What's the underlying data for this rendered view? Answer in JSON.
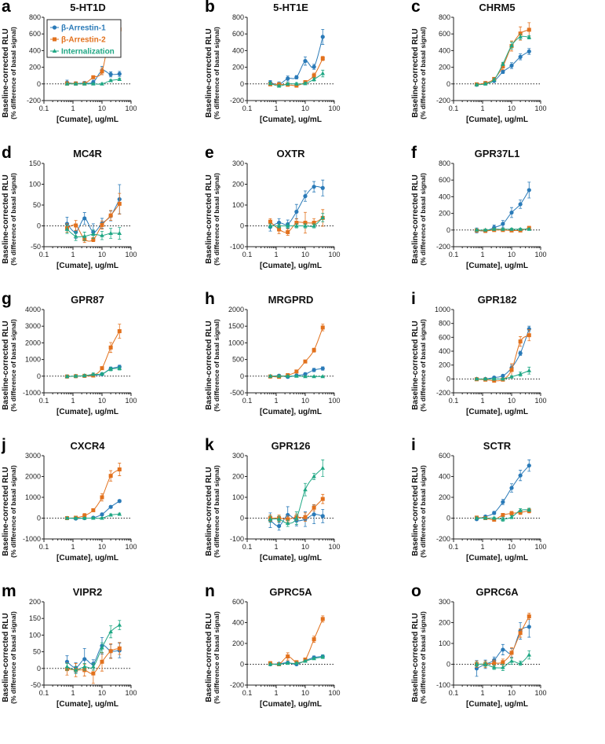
{
  "chart_data": [
    {
      "type": "scatter",
      "letter": "a",
      "title": "5-HT1D",
      "ylim": [
        -200,
        800
      ],
      "ystep": 200,
      "legend": true,
      "series": [
        {
          "values": [
            15,
            5,
            10,
            20,
            160,
            115,
            120
          ],
          "err": [
            30,
            20,
            20,
            25,
            50,
            30,
            30
          ]
        },
        {
          "values": [
            5,
            5,
            5,
            80,
            150,
            625,
            655
          ],
          "err": [
            20,
            15,
            15,
            15,
            40,
            80,
            30
          ]
        },
        {
          "values": [
            0,
            0,
            0,
            0,
            0,
            40,
            55
          ],
          "err": [
            10,
            10,
            10,
            10,
            10,
            10,
            15
          ]
        }
      ]
    },
    {
      "type": "scatter",
      "letter": "b",
      "title": "5-HT1E",
      "ylim": [
        -200,
        800
      ],
      "ystep": 200,
      "series": [
        {
          "values": [
            15,
            -5,
            65,
            80,
            275,
            205,
            565
          ],
          "err": [
            25,
            30,
            30,
            20,
            50,
            30,
            90
          ]
        },
        {
          "values": [
            -5,
            -5,
            -10,
            -20,
            20,
            100,
            305
          ],
          "err": [
            15,
            15,
            15,
            20,
            20,
            30,
            25
          ]
        },
        {
          "values": [
            5,
            -25,
            0,
            0,
            5,
            55,
            125
          ],
          "err": [
            15,
            15,
            15,
            15,
            15,
            20,
            40
          ]
        }
      ]
    },
    {
      "type": "scatter",
      "letter": "c",
      "title": "CHRM5",
      "ylim": [
        -200,
        800
      ],
      "ystep": 200,
      "series": [
        {
          "values": [
            -10,
            10,
            35,
            145,
            220,
            325,
            390
          ],
          "err": [
            10,
            10,
            10,
            20,
            35,
            35,
            35
          ]
        },
        {
          "values": [
            -5,
            10,
            60,
            210,
            455,
            605,
            650
          ],
          "err": [
            10,
            15,
            15,
            40,
            60,
            80,
            85
          ]
        },
        {
          "values": [
            -10,
            0,
            50,
            240,
            460,
            565,
            560
          ],
          "err": [
            10,
            15,
            15,
            20,
            40,
            30,
            20
          ]
        }
      ]
    },
    {
      "type": "scatter",
      "letter": "d",
      "title": "MC4R",
      "ylim": [
        -50,
        150
      ],
      "ystep": 50,
      "series": [
        {
          "values": [
            5,
            -15,
            18,
            -15,
            6,
            24,
            64
          ],
          "err": [
            16,
            15,
            14,
            20,
            12,
            12,
            35
          ]
        },
        {
          "values": [
            -5,
            1,
            -32,
            -33,
            2,
            25,
            53
          ],
          "err": [
            10,
            12,
            8,
            5,
            10,
            12,
            25
          ]
        },
        {
          "values": [
            -8,
            -25,
            -25,
            -20,
            -23,
            -18,
            -18
          ],
          "err": [
            10,
            10,
            10,
            10,
            10,
            12,
            14
          ]
        }
      ]
    },
    {
      "type": "scatter",
      "letter": "e",
      "title": "OXTR",
      "ylim": [
        -100,
        300
      ],
      "ystep": 100,
      "series": [
        {
          "values": [
            -5,
            15,
            8,
            68,
            143,
            188,
            182
          ],
          "err": [
            20,
            20,
            20,
            35,
            25,
            25,
            38
          ]
        },
        {
          "values": [
            20,
            -17,
            -30,
            15,
            15,
            15,
            38
          ],
          "err": [
            15,
            20,
            15,
            20,
            50,
            20,
            40
          ]
        },
        {
          "values": [
            0,
            0,
            0,
            0,
            0,
            0,
            40
          ],
          "err": [
            10,
            10,
            10,
            10,
            10,
            10,
            20
          ]
        }
      ]
    },
    {
      "type": "scatter",
      "letter": "f",
      "title": "GPR37L1",
      "ylim": [
        -200,
        800
      ],
      "ystep": 200,
      "series": [
        {
          "values": [
            -5,
            -10,
            30,
            75,
            210,
            310,
            480
          ],
          "err": [
            30,
            20,
            30,
            40,
            60,
            50,
            95
          ]
        },
        {
          "values": [
            -5,
            -10,
            0,
            0,
            -5,
            -5,
            25
          ],
          "err": [
            15,
            15,
            15,
            15,
            15,
            15,
            20
          ]
        },
        {
          "values": [
            0,
            0,
            10,
            10,
            10,
            10,
            10
          ],
          "err": [
            10,
            10,
            10,
            10,
            10,
            10,
            10
          ]
        }
      ]
    },
    {
      "type": "scatter",
      "letter": "g",
      "title": "GPR87",
      "ylim": [
        -1000,
        4000
      ],
      "ystep": 1000,
      "series": [
        {
          "values": [
            -20,
            0,
            20,
            60,
            120,
            450,
            560
          ],
          "err": [
            80,
            80,
            80,
            80,
            80,
            100,
            100
          ]
        },
        {
          "values": [
            -20,
            0,
            20,
            40,
            480,
            1720,
            2700
          ],
          "err": [
            50,
            50,
            50,
            50,
            80,
            300,
            420
          ]
        },
        {
          "values": [
            -20,
            0,
            30,
            110,
            130,
            420,
            470
          ],
          "err": [
            60,
            60,
            60,
            80,
            80,
            100,
            100
          ]
        }
      ]
    },
    {
      "type": "scatter",
      "letter": "h",
      "title": "MRGPRD",
      "ylim": [
        -500,
        2000
      ],
      "ystep": 500,
      "series": [
        {
          "values": [
            -10,
            15,
            -20,
            20,
            60,
            185,
            230
          ],
          "err": [
            40,
            40,
            40,
            40,
            40,
            50,
            50
          ]
        },
        {
          "values": [
            -10,
            -20,
            30,
            140,
            440,
            780,
            1460
          ],
          "err": [
            30,
            30,
            30,
            40,
            40,
            60,
            100
          ]
        },
        {
          "values": [
            0,
            0,
            0,
            0,
            -10,
            -10,
            -10
          ],
          "err": [
            20,
            20,
            20,
            20,
            20,
            20,
            20
          ]
        }
      ]
    },
    {
      "type": "scatter",
      "letter": "i",
      "title": "GPR182",
      "ylim": [
        -200,
        1000
      ],
      "ystep": 200,
      "series": [
        {
          "values": [
            0,
            0,
            20,
            45,
            160,
            370,
            720
          ],
          "err": [
            15,
            15,
            15,
            15,
            40,
            30,
            40
          ]
        },
        {
          "values": [
            -5,
            -10,
            -25,
            -10,
            130,
            540,
            630
          ],
          "err": [
            15,
            15,
            15,
            15,
            90,
            70,
            80
          ]
        },
        {
          "values": [
            0,
            0,
            0,
            0,
            30,
            70,
            120
          ],
          "err": [
            10,
            10,
            10,
            10,
            15,
            30,
            50
          ]
        }
      ]
    },
    {
      "type": "scatter",
      "letter": "j",
      "title": "CXCR4",
      "ylim": [
        -1000,
        3000
      ],
      "ystep": 1000,
      "series": [
        {
          "values": [
            0,
            -20,
            0,
            20,
            180,
            540,
            820
          ],
          "err": [
            60,
            60,
            60,
            60,
            60,
            60,
            60
          ]
        },
        {
          "values": [
            0,
            20,
            120,
            380,
            1000,
            2030,
            2340
          ],
          "err": [
            60,
            60,
            100,
            60,
            180,
            250,
            300
          ]
        },
        {
          "values": [
            0,
            0,
            0,
            0,
            0,
            150,
            190
          ],
          "err": [
            40,
            40,
            40,
            40,
            40,
            50,
            50
          ]
        }
      ]
    },
    {
      "type": "scatter",
      "letter": "k",
      "title": "GPR126",
      "ylim": [
        -100,
        300
      ],
      "ystep": 100,
      "series": [
        {
          "values": [
            -10,
            -38,
            15,
            -12,
            -5,
            18,
            10
          ],
          "err": [
            35,
            20,
            40,
            25,
            35,
            45,
            32
          ]
        },
        {
          "values": [
            0,
            0,
            -5,
            5,
            5,
            50,
            92
          ],
          "err": [
            15,
            15,
            15,
            15,
            20,
            15,
            22
          ]
        },
        {
          "values": [
            -5,
            -5,
            -25,
            0,
            137,
            200,
            240
          ],
          "err": [
            15,
            15,
            15,
            30,
            30,
            15,
            40
          ]
        }
      ]
    },
    {
      "type": "scatter",
      "letter": "i",
      "title": "SCTR",
      "ylim": [
        -200,
        600
      ],
      "ystep": 200,
      "series": [
        {
          "values": [
            -10,
            15,
            50,
            155,
            290,
            410,
            505
          ],
          "err": [
            10,
            10,
            15,
            25,
            40,
            50,
            55
          ]
        },
        {
          "values": [
            5,
            0,
            -15,
            30,
            45,
            55,
            70
          ],
          "err": [
            15,
            15,
            15,
            15,
            20,
            20,
            20
          ]
        },
        {
          "values": [
            0,
            0,
            0,
            -10,
            10,
            75,
            80
          ],
          "err": [
            10,
            10,
            10,
            20,
            15,
            15,
            15
          ]
        }
      ]
    },
    {
      "type": "scatter",
      "letter": "m",
      "title": "VIPR2",
      "ylim": [
        -50,
        200
      ],
      "ystep": 50,
      "series": [
        {
          "values": [
            20,
            2,
            28,
            14,
            68,
            52,
            54
          ],
          "err": [
            18,
            15,
            32,
            12,
            25,
            20,
            22
          ]
        },
        {
          "values": [
            -2,
            -5,
            -5,
            -15,
            20,
            52,
            60
          ],
          "err": [
            18,
            20,
            18,
            30,
            28,
            22,
            18
          ]
        },
        {
          "values": [
            5,
            -5,
            5,
            5,
            62,
            110,
            130
          ],
          "err": [
            10,
            10,
            10,
            10,
            15,
            18,
            14
          ]
        }
      ]
    },
    {
      "type": "scatter",
      "letter": "n",
      "title": "GPRC5A",
      "ylim": [
        -200,
        600
      ],
      "ystep": 200,
      "series": [
        {
          "values": [
            0,
            5,
            15,
            0,
            35,
            65,
            75
          ],
          "err": [
            10,
            10,
            10,
            10,
            10,
            15,
            15
          ]
        },
        {
          "values": [
            10,
            0,
            75,
            20,
            45,
            240,
            435
          ],
          "err": [
            15,
            15,
            35,
            15,
            15,
            30,
            30
          ]
        },
        {
          "values": [
            0,
            0,
            10,
            10,
            30,
            55,
            70
          ],
          "err": [
            10,
            10,
            10,
            10,
            10,
            10,
            15
          ]
        }
      ]
    },
    {
      "type": "scatter",
      "letter": "o",
      "title": "GPRC6A",
      "ylim": [
        -100,
        300
      ],
      "ystep": 100,
      "series": [
        {
          "values": [
            -20,
            0,
            20,
            70,
            55,
            160,
            180
          ],
          "err": [
            38,
            20,
            15,
            25,
            20,
            40,
            50
          ]
        },
        {
          "values": [
            0,
            0,
            5,
            10,
            55,
            150,
            230
          ],
          "err": [
            15,
            15,
            15,
            15,
            25,
            20,
            15
          ]
        },
        {
          "values": [
            0,
            0,
            -15,
            -15,
            15,
            5,
            45
          ],
          "err": [
            10,
            10,
            10,
            15,
            15,
            10,
            20
          ]
        }
      ]
    }
  ],
  "shared": {
    "x": [
      0.625,
      1.25,
      2.5,
      5,
      10,
      20,
      40
    ],
    "xlim": [
      0.1,
      100
    ],
    "xscale": "log",
    "xticks": [
      "0.1",
      "1",
      "10",
      "100"
    ],
    "xlabel": "[Cumate], ug/mL",
    "ylabel": "Baseline-corrected RLU",
    "ylabel_sub": "(% difference of basal signal)",
    "series_names": [
      "β-Arrestin-1",
      "β-Arrestin-2",
      "Internalization"
    ],
    "series_markers": [
      "circle",
      "square",
      "triangle"
    ],
    "series_colors": [
      "#2a7ab8",
      "#e2711d",
      "#1fa784"
    ],
    "zero_line": "dotted",
    "legend_position": "top-left (panel a)"
  }
}
